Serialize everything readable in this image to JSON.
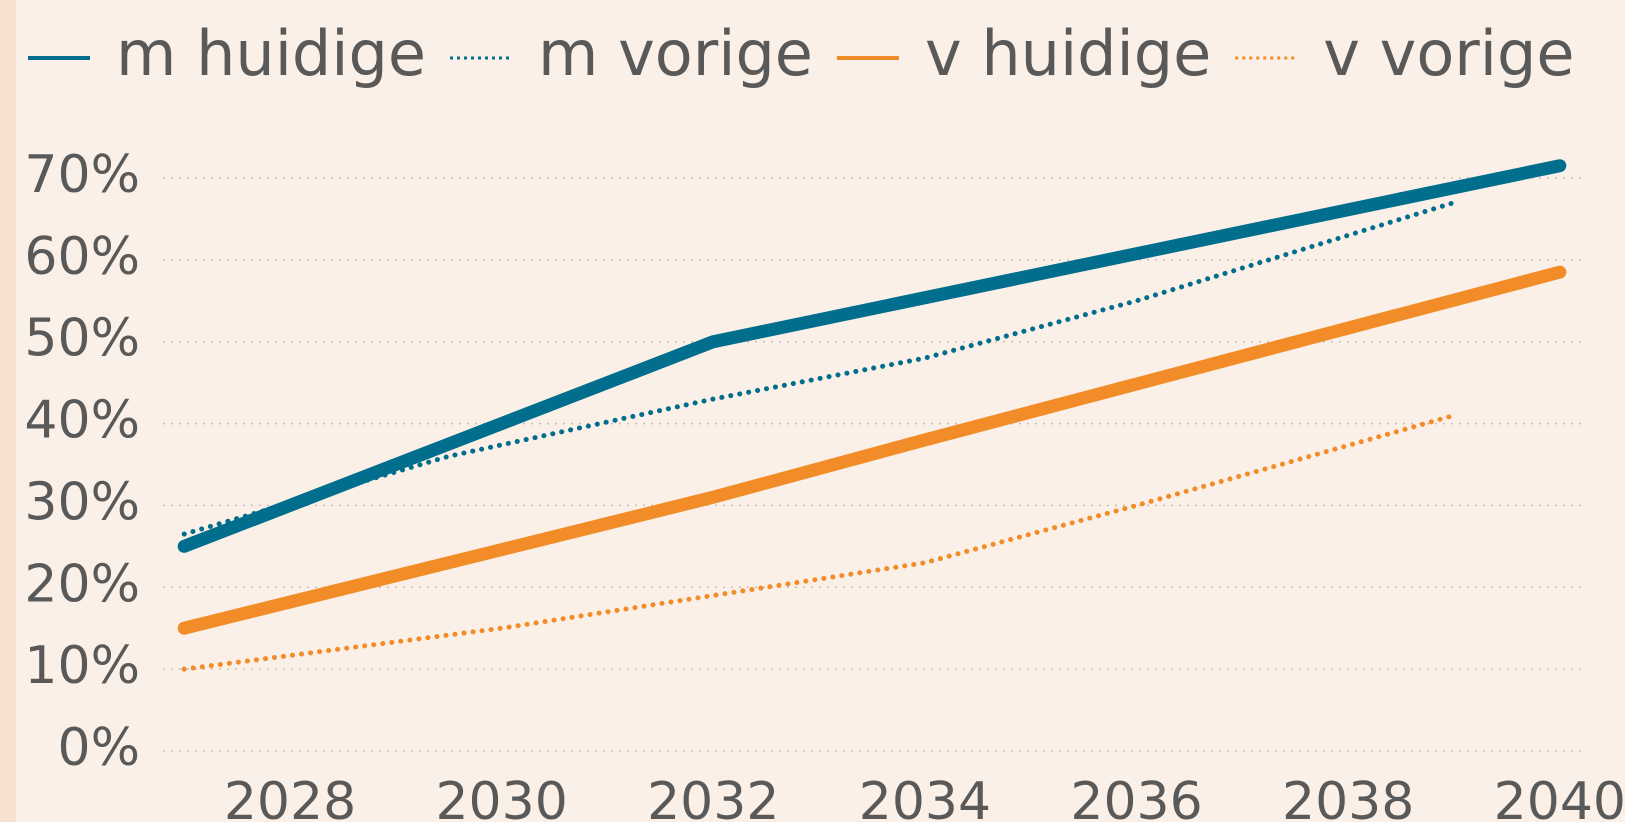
{
  "chart_data": {
    "type": "line",
    "xlim": [
      2026.8,
      2040.2
    ],
    "xticks": [
      2028,
      2030,
      2032,
      2034,
      2036,
      2038,
      2040
    ],
    "ylim": [
      0,
      70
    ],
    "yticks": [
      {
        "value": 0,
        "label": "0%"
      },
      {
        "value": 10,
        "label": "10%"
      },
      {
        "value": 20,
        "label": "20%"
      },
      {
        "value": 30,
        "label": "30%"
      },
      {
        "value": 40,
        "label": "40%"
      },
      {
        "value": 50,
        "label": "50%"
      },
      {
        "value": 60,
        "label": "60%"
      },
      {
        "value": 70,
        "label": "70%"
      }
    ],
    "grid": true,
    "legend": "top",
    "series": [
      {
        "name": "m huidige",
        "color": "#006e8c",
        "line_style": "solid",
        "x": [
          2027,
          2032,
          2040
        ],
        "values": [
          25,
          50,
          71.5
        ]
      },
      {
        "name": "m vorige",
        "color": "#006e8c",
        "line_style": "dotted",
        "x": [
          2027,
          2029.5,
          2032,
          2034,
          2036,
          2039
        ],
        "values": [
          26.5,
          36,
          43,
          48,
          55,
          67
        ]
      },
      {
        "name": "v huidige",
        "color": "#f28c28",
        "line_style": "solid",
        "x": [
          2027,
          2032,
          2034,
          2040
        ],
        "values": [
          15,
          31,
          38,
          58.5
        ]
      },
      {
        "name": "v vorige",
        "color": "#f28c28",
        "line_style": "dotted",
        "x": [
          2027,
          2030,
          2032,
          2034,
          2036,
          2039
        ],
        "values": [
          10,
          15,
          19,
          23,
          30,
          41
        ]
      }
    ]
  }
}
